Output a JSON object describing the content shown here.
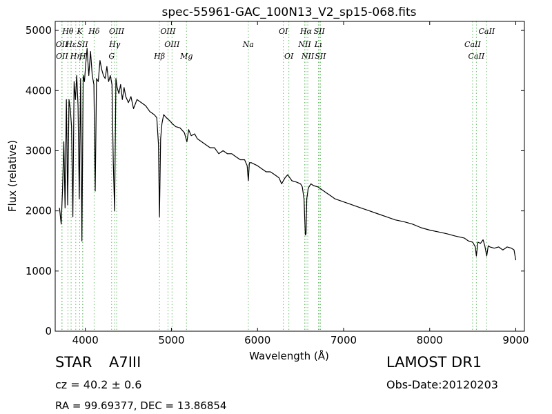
{
  "chart_data": {
    "type": "line",
    "title": "spec-55961-GAC_100N13_V2_sp15-068.fits",
    "xlabel": "Wavelength (Å)",
    "ylabel": "Flux (relative)",
    "xlim": [
      3650,
      9100
    ],
    "ylim": [
      0,
      5150
    ],
    "x_ticks": [
      4000,
      5000,
      6000,
      7000,
      8000,
      9000
    ],
    "y_ticks": [
      0,
      1000,
      2000,
      3000,
      4000,
      5000
    ],
    "grid": false,
    "series": [
      {
        "x": [
          3700,
          3720,
          3735,
          3750,
          3765,
          3780,
          3795,
          3810,
          3825,
          3840,
          3855,
          3870,
          3885,
          3900,
          3915,
          3930,
          3945,
          3960,
          3975,
          3990,
          4005,
          4020,
          4040,
          4060,
          4080,
          4100,
          4115,
          4130,
          4150,
          4170,
          4190,
          4210,
          4230,
          4250,
          4270,
          4290,
          4310,
          4325,
          4340,
          4355,
          4370,
          4390,
          4410,
          4430,
          4450,
          4470,
          4500,
          4530,
          4560,
          4600,
          4650,
          4700,
          4750,
          4800,
          4830,
          4850,
          4861,
          4875,
          4890,
          4910,
          4940,
          4980,
          5010,
          5050,
          5100,
          5150,
          5180,
          5200,
          5230,
          5270,
          5300,
          5350,
          5400,
          5450,
          5500,
          5550,
          5600,
          5650,
          5700,
          5750,
          5800,
          5850,
          5880,
          5893,
          5905,
          5930,
          6000,
          6050,
          6100,
          6150,
          6200,
          6250,
          6280,
          6320,
          6350,
          6400,
          6450,
          6500,
          6520,
          6540,
          6555,
          6563,
          6572,
          6590,
          6620,
          6650,
          6700,
          6750,
          6800,
          6850,
          6900,
          7000,
          7100,
          7200,
          7300,
          7400,
          7500,
          7600,
          7700,
          7800,
          7900,
          8000,
          8100,
          8200,
          8300,
          8400,
          8450,
          8500,
          8530,
          8542,
          8560,
          8590,
          8620,
          8640,
          8662,
          8680,
          8700,
          8750,
          8800,
          8850,
          8900,
          8950,
          8980,
          9000
        ],
        "values": [
          2050,
          1780,
          2350,
          3150,
          2050,
          3850,
          2100,
          3850,
          3700,
          3400,
          1900,
          4150,
          3850,
          4250,
          3750,
          2200,
          4200,
          1500,
          4250,
          4150,
          4450,
          4700,
          4250,
          4650,
          4250,
          4100,
          2330,
          4200,
          4150,
          4500,
          4350,
          4250,
          4200,
          4400,
          4150,
          4250,
          4100,
          2800,
          2000,
          4200,
          4050,
          3950,
          4100,
          3850,
          4050,
          3900,
          3800,
          3900,
          3700,
          3850,
          3800,
          3750,
          3650,
          3600,
          3550,
          3100,
          1900,
          3200,
          3450,
          3600,
          3550,
          3500,
          3450,
          3400,
          3380,
          3300,
          3150,
          3350,
          3250,
          3280,
          3200,
          3150,
          3100,
          3050,
          3050,
          2950,
          3000,
          2950,
          2950,
          2900,
          2850,
          2850,
          2750,
          2500,
          2800,
          2800,
          2750,
          2700,
          2650,
          2650,
          2600,
          2550,
          2450,
          2550,
          2600,
          2500,
          2480,
          2450,
          2400,
          2200,
          1600,
          1620,
          2200,
          2380,
          2450,
          2420,
          2400,
          2350,
          2300,
          2250,
          2200,
          2150,
          2100,
          2050,
          2000,
          1950,
          1900,
          1850,
          1820,
          1780,
          1720,
          1680,
          1650,
          1620,
          1580,
          1550,
          1500,
          1480,
          1400,
          1250,
          1480,
          1460,
          1520,
          1420,
          1250,
          1420,
          1400,
          1380,
          1400,
          1350,
          1400,
          1380,
          1350,
          1180
        ]
      }
    ],
    "lines": [
      {
        "label": "Hθ",
        "wavelength": 3798,
        "row": 0
      },
      {
        "label": "K",
        "wavelength": 3934,
        "row": 0
      },
      {
        "label": "Hδ",
        "wavelength": 4102,
        "row": 0
      },
      {
        "label": "OIII",
        "wavelength": 4364,
        "row": 0
      },
      {
        "label": "OIII",
        "wavelength": 4960,
        "row": 0
      },
      {
        "label": "OI",
        "wavelength": 6300,
        "row": 0
      },
      {
        "label": "Hα",
        "wavelength": 6563,
        "row": 0
      },
      {
        "label": "SII",
        "wavelength": 6717,
        "row": 0
      },
      {
        "label": "CaII",
        "wavelength": 8662,
        "row": 0
      },
      {
        "label": "OII",
        "wavelength": 3727,
        "row": 1
      },
      {
        "label": "Hε",
        "wavelength": 3835,
        "row": 1
      },
      {
        "label": "SII",
        "wavelength": 3968,
        "row": 1
      },
      {
        "label": "Hγ",
        "wavelength": 4341,
        "row": 1
      },
      {
        "label": "OIII",
        "wavelength": 5007,
        "row": 1
      },
      {
        "label": "Na",
        "wavelength": 5893,
        "row": 1
      },
      {
        "label": "NII",
        "wavelength": 6548,
        "row": 1
      },
      {
        "label": "Lι",
        "wavelength": 6708,
        "row": 1
      },
      {
        "label": "CaII",
        "wavelength": 8498,
        "row": 1
      },
      {
        "label": "OII",
        "wavelength": 3730,
        "row": 2
      },
      {
        "label": "Hη",
        "wavelength": 3889,
        "row": 2
      },
      {
        "label": "H",
        "wavelength": 3970,
        "row": 2
      },
      {
        "label": "G",
        "wavelength": 4305,
        "row": 2
      },
      {
        "label": "Hβ",
        "wavelength": 4861,
        "row": 2
      },
      {
        "label": "Mg",
        "wavelength": 5175,
        "row": 2
      },
      {
        "label": "OI",
        "wavelength": 6364,
        "row": 2
      },
      {
        "label": "NII",
        "wavelength": 6584,
        "row": 2
      },
      {
        "label": "SII",
        "wavelength": 6731,
        "row": 2
      },
      {
        "label": "CaII",
        "wavelength": 8542,
        "row": 2
      }
    ],
    "line_color": "#000000",
    "marker_color": "#66bb66"
  },
  "info": {
    "object_type": "STAR",
    "subclass": "A7III",
    "survey": "LAMOST DR1",
    "redshift_text": "cz = 40.2 ± 0.6",
    "obs_date": "Obs-Date:20120203",
    "coords": "RA = 99.69377, DEC = 13.86854"
  }
}
